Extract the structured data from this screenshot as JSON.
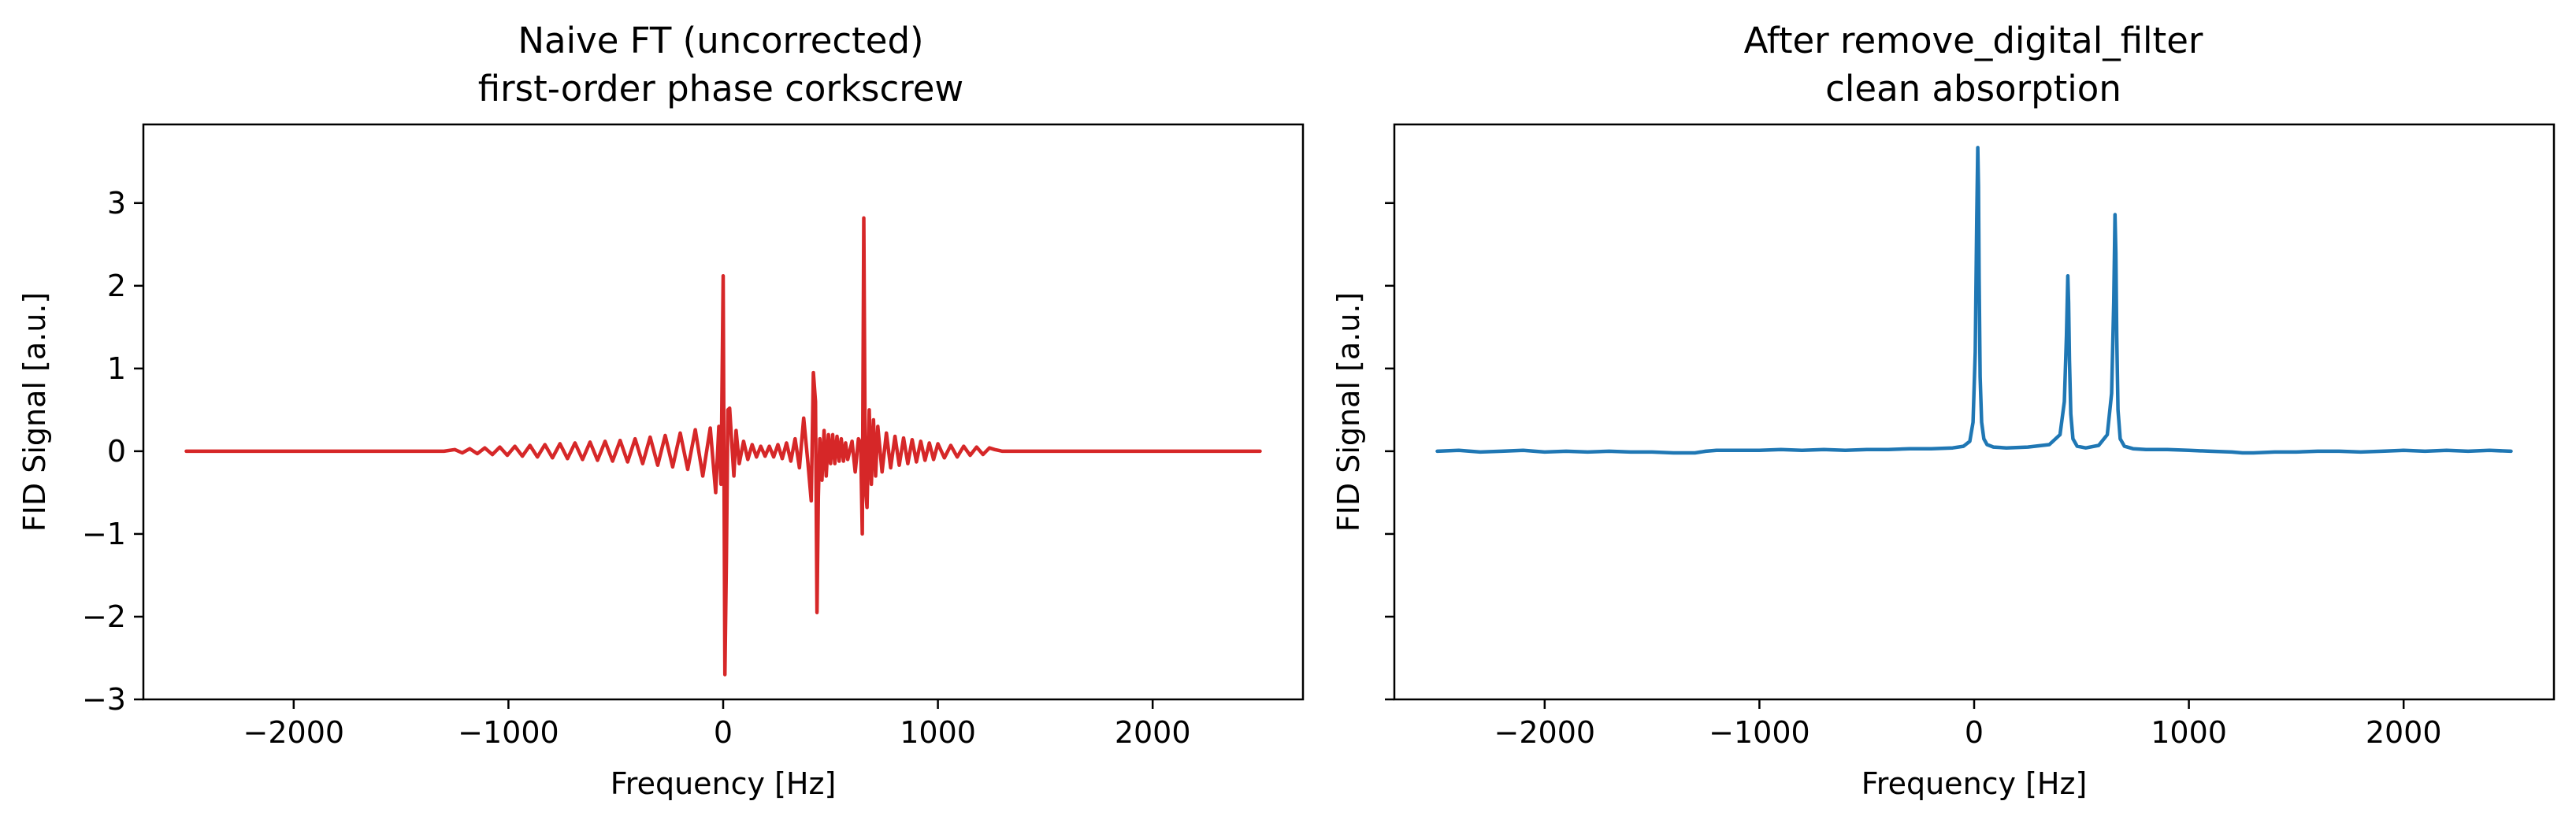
{
  "chart_data": [
    {
      "type": "line",
      "title": "Naive FT (uncorrected)",
      "subtitle": "first-order phase corkscrew",
      "xlabel": "Frequency [Hz]",
      "ylabel": "FID Signal [a.u.]",
      "xlim": [
        -2700,
        2700
      ],
      "ylim": [
        -3,
        3.95
      ],
      "xticks": [
        -2000,
        -1000,
        0,
        1000,
        2000
      ],
      "xtick_labels": [
        "−2000",
        "−1000",
        "0",
        "1000",
        "2000"
      ],
      "yticks": [
        -3,
        -2,
        -1,
        0,
        1,
        2,
        3
      ],
      "ytick_labels": [
        "−3",
        "−2",
        "−1",
        "0",
        "1",
        "2",
        "3"
      ],
      "grid": false,
      "series": [
        {
          "color": "#d62728",
          "x": [
            -2500,
            -1300,
            -1250,
            -1215,
            -1180,
            -1145,
            -1110,
            -1075,
            -1040,
            -1005,
            -970,
            -935,
            -900,
            -865,
            -830,
            -795,
            -760,
            -725,
            -690,
            -655,
            -620,
            -585,
            -550,
            -515,
            -480,
            -445,
            -410,
            -375,
            -340,
            -305,
            -270,
            -235,
            -200,
            -165,
            -130,
            -95,
            -60,
            -35,
            -20,
            -10,
            0,
            8,
            15,
            22,
            30,
            40,
            50,
            60,
            75,
            95,
            115,
            135,
            155,
            175,
            195,
            215,
            235,
            255,
            275,
            295,
            315,
            335,
            355,
            375,
            395,
            410,
            420,
            430,
            437,
            443,
            450,
            460,
            470,
            480,
            490,
            500,
            510,
            520,
            530,
            540,
            550,
            560,
            570,
            580,
            600,
            615,
            630,
            640,
            648,
            655,
            662,
            670,
            680,
            690,
            700,
            710,
            720,
            740,
            760,
            780,
            800,
            820,
            840,
            860,
            880,
            900,
            920,
            940,
            960,
            980,
            1000,
            1030,
            1060,
            1090,
            1120,
            1150,
            1180,
            1210,
            1240,
            1265,
            1300,
            2500
          ],
          "y": [
            0,
            0,
            0.02,
            -0.02,
            0.03,
            -0.03,
            0.04,
            -0.04,
            0.05,
            -0.05,
            0.06,
            -0.06,
            0.07,
            -0.07,
            0.08,
            -0.08,
            0.09,
            -0.09,
            0.1,
            -0.1,
            0.11,
            -0.11,
            0.12,
            -0.12,
            0.13,
            -0.13,
            0.15,
            -0.15,
            0.17,
            -0.17,
            0.19,
            -0.19,
            0.22,
            -0.22,
            0.26,
            -0.3,
            0.28,
            -0.5,
            0.3,
            -0.4,
            2.12,
            -2.7,
            -1.3,
            0.5,
            0.52,
            0.1,
            -0.3,
            0.25,
            -0.15,
            0.12,
            -0.1,
            0.08,
            -0.07,
            0.06,
            -0.06,
            0.06,
            -0.07,
            0.08,
            -0.09,
            0.1,
            -0.12,
            0.15,
            -0.2,
            0.4,
            -0.15,
            -0.6,
            0.95,
            0.6,
            -1.95,
            -0.55,
            0.15,
            -0.35,
            0.25,
            -0.3,
            0.2,
            -0.15,
            0.2,
            -0.15,
            0.18,
            -0.12,
            0.15,
            -0.12,
            0.1,
            -0.1,
            0.12,
            -0.25,
            0.15,
            0.1,
            -1.0,
            2.82,
            -0.45,
            -0.68,
            0.5,
            -0.4,
            0.38,
            -0.3,
            0.3,
            -0.25,
            0.22,
            -0.2,
            0.18,
            -0.17,
            0.16,
            -0.15,
            0.14,
            -0.13,
            0.12,
            -0.11,
            0.1,
            -0.1,
            0.09,
            -0.08,
            0.07,
            -0.07,
            0.06,
            -0.05,
            0.05,
            -0.04,
            0.04,
            0.02,
            0,
            0
          ]
        }
      ]
    },
    {
      "type": "line",
      "title": "After remove_digital_filter",
      "subtitle": "clean absorption",
      "xlabel": "Frequency [Hz]",
      "ylabel": "FID Signal [a.u.]",
      "xlim": [
        -2700,
        2700
      ],
      "ylim": [
        -3,
        3.95
      ],
      "xticks": [
        -2000,
        -1000,
        0,
        1000,
        2000
      ],
      "xtick_labels": [
        "−2000",
        "−1000",
        "0",
        "1000",
        "2000"
      ],
      "yticks": [
        -3,
        -2,
        -1,
        0,
        1,
        2,
        3
      ],
      "ytick_labels": [],
      "grid": false,
      "series": [
        {
          "color": "#1f77b4",
          "x": [
            -2500,
            -2400,
            -2300,
            -2200,
            -2100,
            -2000,
            -1900,
            -1800,
            -1700,
            -1600,
            -1500,
            -1400,
            -1300,
            -1250,
            -1200,
            -1100,
            -1000,
            -900,
            -800,
            -700,
            -600,
            -500,
            -400,
            -300,
            -200,
            -100,
            -50,
            -20,
            -5,
            5,
            12,
            17,
            20,
            23,
            28,
            35,
            45,
            60,
            90,
            150,
            250,
            350,
            400,
            420,
            430,
            436,
            440,
            444,
            450,
            460,
            480,
            520,
            580,
            620,
            640,
            650,
            656,
            660,
            664,
            670,
            680,
            700,
            740,
            800,
            900,
            1000,
            1100,
            1200,
            1250,
            1300,
            1400,
            1500,
            1600,
            1700,
            1800,
            1900,
            2000,
            2100,
            2200,
            2300,
            2400,
            2500
          ],
          "y": [
            0.0,
            0.01,
            -0.01,
            0.0,
            0.01,
            -0.01,
            0.0,
            -0.01,
            0.0,
            -0.01,
            -0.01,
            -0.02,
            -0.02,
            0.0,
            0.01,
            0.01,
            0.01,
            0.02,
            0.01,
            0.02,
            0.01,
            0.02,
            0.02,
            0.03,
            0.03,
            0.04,
            0.06,
            0.12,
            0.35,
            1.2,
            2.8,
            3.67,
            3.2,
            2.1,
            0.9,
            0.35,
            0.15,
            0.08,
            0.05,
            0.04,
            0.05,
            0.08,
            0.2,
            0.6,
            1.4,
            2.12,
            1.8,
            1.1,
            0.45,
            0.15,
            0.06,
            0.04,
            0.07,
            0.2,
            0.7,
            1.8,
            2.86,
            2.4,
            1.4,
            0.5,
            0.15,
            0.06,
            0.03,
            0.02,
            0.02,
            0.01,
            0.0,
            -0.01,
            -0.02,
            -0.02,
            -0.01,
            -0.01,
            0.0,
            0.0,
            -0.01,
            0.0,
            0.01,
            0.0,
            0.01,
            0.0,
            0.01,
            0.0
          ]
        }
      ]
    }
  ]
}
